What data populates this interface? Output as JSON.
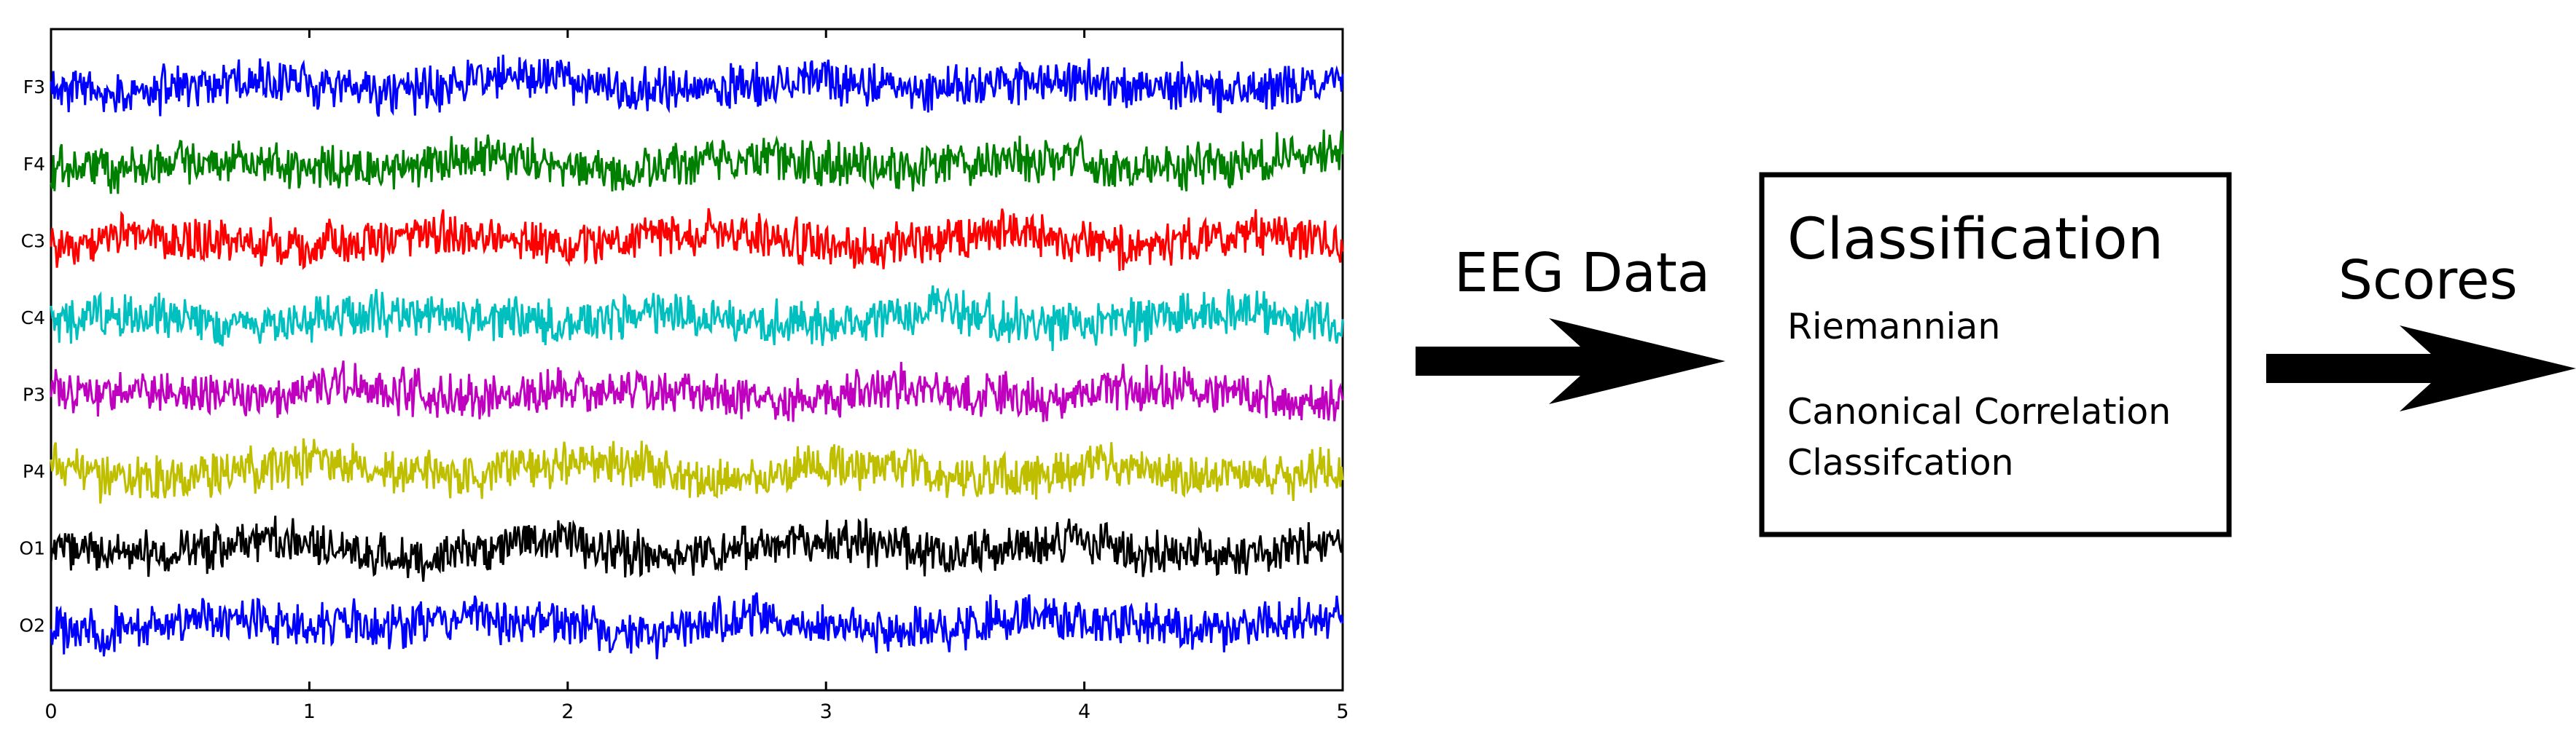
{
  "eeg_plot": {
    "channels": [
      {
        "name": "F3",
        "color": "#0000ff"
      },
      {
        "name": "F4",
        "color": "#008000"
      },
      {
        "name": "C3",
        "color": "#ff0000"
      },
      {
        "name": "C4",
        "color": "#00bfbf"
      },
      {
        "name": "P3",
        "color": "#bf00bf"
      },
      {
        "name": "P4",
        "color": "#bfbf00"
      },
      {
        "name": "O1",
        "color": "#000000"
      },
      {
        "name": "O2",
        "color": "#0000ff"
      }
    ],
    "x_ticks": [
      "0",
      "1",
      "2",
      "3",
      "4",
      "5"
    ],
    "x_range": [
      0,
      5
    ]
  },
  "arrow1_label": "EEG Data",
  "classification_box": {
    "title": "Classification",
    "item1": "Riemannian",
    "item2_line1": "Canonical Correlation",
    "item2_line2": "Classifcation"
  },
  "arrow2_label": "Scores"
}
